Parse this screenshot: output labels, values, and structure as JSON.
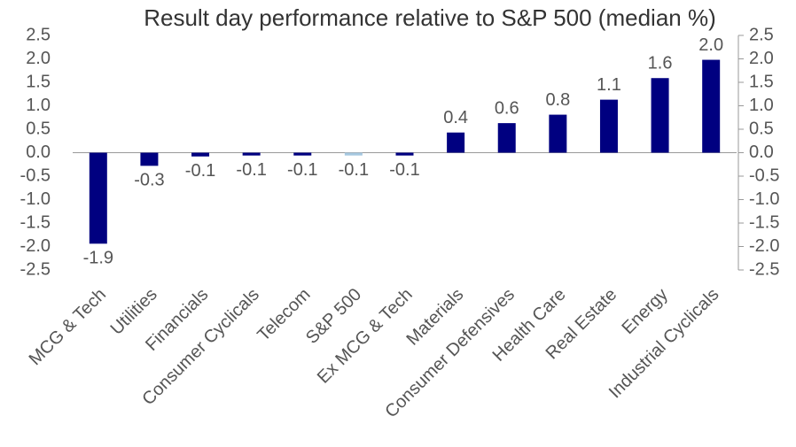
{
  "chart_data": {
    "type": "bar",
    "title": "Result day performance relative to S&P 500 (median %)",
    "categories": [
      "MCG & Tech",
      "Utilities",
      "Financials",
      "Consumer Cyclicals",
      "Telecom",
      "S&P 500",
      "Ex MCG & Tech",
      "Materials",
      "Consumer Defensives",
      "Health Care",
      "Real Estate",
      "Energy",
      "Industrial Cyclicals"
    ],
    "values": [
      -1.94,
      -0.28,
      -0.08,
      -0.06,
      -0.06,
      -0.06,
      -0.06,
      0.43,
      0.63,
      0.81,
      1.13,
      1.59,
      1.98
    ],
    "value_labels": [
      "-1.9",
      "-0.3",
      "-0.1",
      "-0.1",
      "-0.1",
      "-0.1",
      "-0.1",
      "0.4",
      "0.6",
      "0.8",
      "1.1",
      "1.6",
      "2.0"
    ],
    "colors": [
      "#000080",
      "#000080",
      "#000080",
      "#000080",
      "#000080",
      "#a6c8e0",
      "#000080",
      "#000080",
      "#000080",
      "#000080",
      "#000080",
      "#000080",
      "#000080"
    ],
    "ylim": [
      -2.5,
      2.5
    ],
    "yticks": [
      2.5,
      {
        "value": 2,
        "label": "2.0"
      },
      1.5,
      {
        "value": 1,
        "label": "1.0"
      },
      0.5,
      {
        "value": 0,
        "label": "0.0"
      },
      -0.5,
      {
        "value": -1,
        "label": "-1.0"
      },
      -1.5,
      {
        "value": -2,
        "label": "-2.0"
      },
      -2.5
    ],
    "y2lim": [
      -2.5,
      2.5
    ],
    "y2ticks": [
      2.5,
      {
        "value": 2,
        "label": "2.0"
      },
      1.5,
      {
        "value": 1,
        "label": "1.0"
      },
      0.5,
      {
        "value": 0,
        "label": "0.0"
      },
      -0.5,
      {
        "value": -1,
        "label": "-1.0"
      },
      -1.5,
      {
        "value": -2,
        "label": "-2.0"
      },
      -2.5
    ]
  }
}
